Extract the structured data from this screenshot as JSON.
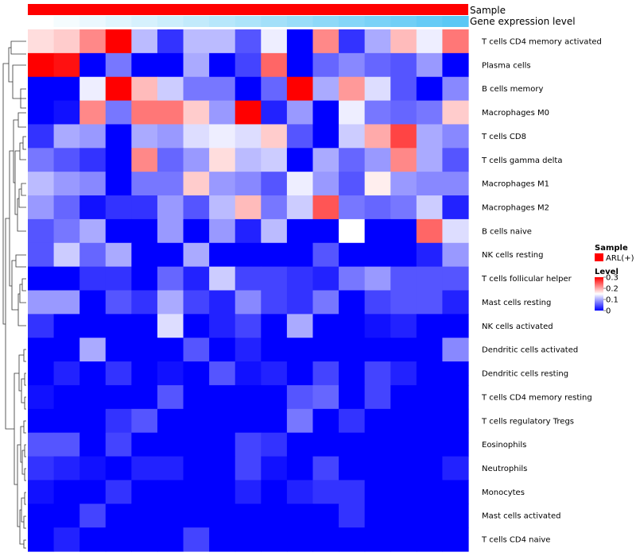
{
  "chart_data": {
    "type": "heatmap",
    "annotations": {
      "sample_label": "Sample",
      "expression_label": "Gene expression level",
      "expression_gradient": [
        "#ffffff",
        "#5bc8f5"
      ]
    },
    "legend": {
      "sample_title": "Sample",
      "sample_entry": "ARL(+)",
      "sample_color": "#ff0000",
      "level_title": "Level",
      "ticks": [
        "0.3",
        "0.2",
        "0.1",
        "0"
      ],
      "tick_values": [
        0.3,
        0.2,
        0.1,
        0
      ],
      "placement": "right",
      "color_low": "#0000ff",
      "color_mid": "#ffffff",
      "color_high": "#ff0000"
    },
    "scale": {
      "min": 0,
      "mid": 0.15,
      "max": 0.3
    },
    "columns": 17,
    "rows": [
      "T cells CD4 memory activated",
      "Plasma cells",
      "B cells memory",
      "Macrophages M0",
      "T cells CD8",
      "T cells gamma delta",
      "Macrophages M1",
      "Macrophages M2",
      "B cells naive",
      "NK cells resting",
      "T cells follicular helper",
      "Mast cells resting",
      "NK cells activated",
      "Dendritic cells activated",
      "Dendritic cells resting",
      "T cells CD4 memory resting",
      "T cells regulatory  Tregs",
      "Eosinophils",
      "Neutrophils",
      "Monocytes",
      "Mast cells activated",
      "T cells CD4 naive"
    ],
    "values": [
      [
        0.17,
        0.18,
        0.22,
        0.3,
        0.11,
        0.03,
        0.11,
        0.11,
        0.05,
        0.14,
        0.0,
        0.22,
        0.03,
        0.1,
        0.19,
        0.14,
        0.23
      ],
      [
        0.3,
        0.29,
        0.0,
        0.07,
        0.0,
        0.0,
        0.1,
        0.0,
        0.04,
        0.24,
        0.0,
        0.06,
        0.08,
        0.06,
        0.05,
        0.09,
        0.0
      ],
      [
        0.0,
        0.0,
        0.14,
        0.3,
        0.19,
        0.12,
        0.07,
        0.07,
        0.0,
        0.06,
        0.3,
        0.1,
        0.21,
        0.13,
        0.05,
        0.0,
        0.08
      ],
      [
        0.0,
        0.01,
        0.22,
        0.07,
        0.23,
        0.23,
        0.18,
        0.09,
        0.3,
        0.02,
        0.09,
        0.0,
        0.14,
        0.07,
        0.06,
        0.07,
        0.18
      ],
      [
        0.03,
        0.1,
        0.09,
        0.0,
        0.1,
        0.09,
        0.13,
        0.14,
        0.13,
        0.18,
        0.05,
        0.0,
        0.12,
        0.2,
        0.26,
        0.1,
        0.08
      ],
      [
        0.07,
        0.05,
        0.03,
        0.0,
        0.22,
        0.06,
        0.09,
        0.17,
        0.11,
        0.12,
        0.0,
        0.1,
        0.06,
        0.09,
        0.22,
        0.1,
        0.05
      ],
      [
        0.11,
        0.09,
        0.08,
        0.0,
        0.07,
        0.07,
        0.18,
        0.09,
        0.08,
        0.05,
        0.14,
        0.09,
        0.05,
        0.16,
        0.09,
        0.08,
        0.08
      ],
      [
        0.09,
        0.06,
        0.01,
        0.03,
        0.03,
        0.09,
        0.05,
        0.11,
        0.19,
        0.07,
        0.12,
        0.25,
        0.07,
        0.06,
        0.07,
        0.12,
        0.02
      ],
      [
        0.05,
        0.07,
        0.1,
        0.0,
        0.0,
        0.09,
        0.0,
        0.09,
        0.02,
        0.11,
        0.0,
        0.0,
        0.15,
        0.0,
        0.0,
        0.24,
        0.13
      ],
      [
        0.05,
        0.12,
        0.06,
        0.1,
        0.0,
        0.0,
        0.1,
        0.0,
        0.0,
        0.0,
        0.0,
        0.05,
        0.0,
        0.0,
        0.0,
        0.02,
        0.09
      ],
      [
        0.0,
        0.0,
        0.03,
        0.03,
        0.0,
        0.06,
        0.02,
        0.12,
        0.04,
        0.04,
        0.03,
        0.02,
        0.07,
        0.09,
        0.05,
        0.05,
        0.05
      ],
      [
        0.09,
        0.09,
        0.0,
        0.05,
        0.03,
        0.1,
        0.04,
        0.02,
        0.08,
        0.04,
        0.03,
        0.07,
        0.0,
        0.04,
        0.05,
        0.05,
        0.02
      ],
      [
        0.03,
        0.0,
        0.0,
        0.0,
        0.0,
        0.13,
        0.0,
        0.02,
        0.04,
        0.0,
        0.1,
        0.0,
        0.0,
        0.01,
        0.02,
        0.0,
        0.0
      ],
      [
        0.0,
        0.0,
        0.1,
        0.0,
        0.0,
        0.0,
        0.05,
        0.0,
        0.02,
        0.0,
        0.0,
        0.0,
        0.0,
        0.0,
        0.0,
        0.0,
        0.08
      ],
      [
        0.0,
        0.02,
        0.0,
        0.03,
        0.0,
        0.01,
        0.0,
        0.05,
        0.01,
        0.02,
        0.0,
        0.04,
        0.0,
        0.04,
        0.02,
        0.0,
        0.0
      ],
      [
        0.01,
        0.0,
        0.0,
        0.0,
        0.0,
        0.05,
        0.0,
        0.0,
        0.0,
        0.0,
        0.05,
        0.06,
        0.0,
        0.04,
        0.0,
        0.0,
        0.0
      ],
      [
        0.0,
        0.0,
        0.0,
        0.03,
        0.05,
        0.0,
        0.0,
        0.0,
        0.0,
        0.0,
        0.07,
        0.0,
        0.03,
        0.0,
        0.0,
        0.0,
        0.0
      ],
      [
        0.05,
        0.05,
        0.0,
        0.04,
        0.0,
        0.0,
        0.0,
        0.0,
        0.04,
        0.03,
        0.0,
        0.0,
        0.0,
        0.0,
        0.0,
        0.0,
        0.0
      ],
      [
        0.03,
        0.02,
        0.01,
        0.0,
        0.02,
        0.02,
        0.0,
        0.0,
        0.04,
        0.01,
        0.0,
        0.04,
        0.0,
        0.0,
        0.0,
        0.0,
        0.02
      ],
      [
        0.01,
        0.0,
        0.0,
        0.03,
        0.0,
        0.0,
        0.0,
        0.0,
        0.02,
        0.0,
        0.02,
        0.03,
        0.03,
        0.0,
        0.0,
        0.0,
        0.0
      ],
      [
        0.0,
        0.0,
        0.04,
        0.0,
        0.0,
        0.0,
        0.0,
        0.0,
        0.0,
        0.0,
        0.0,
        0.0,
        0.03,
        0.0,
        0.0,
        0.0,
        0.0
      ],
      [
        0.0,
        0.02,
        0.0,
        0.0,
        0.0,
        0.0,
        0.04,
        0.0,
        0.0,
        0.0,
        0.0,
        0.0,
        0.0,
        0.0,
        0.0,
        0.0,
        0.0
      ]
    ]
  }
}
